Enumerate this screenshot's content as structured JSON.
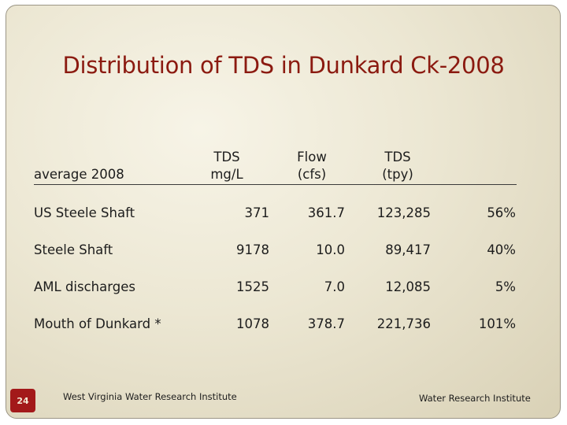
{
  "title": "Distribution of TDS in Dunkard Ck-2008",
  "table": {
    "row_header": "average 2008",
    "columns": [
      {
        "line1": "TDS",
        "line2": "mg/L"
      },
      {
        "line1": "Flow",
        "line2": "(cfs)"
      },
      {
        "line1": "TDS",
        "line2": "(tpy)"
      }
    ],
    "rows": [
      {
        "label": "US Steele Shaft",
        "tds_mgl": "371",
        "flow_cfs": "361.7",
        "tds_tpy": "123,285",
        "percent": "56%"
      },
      {
        "label": "Steele Shaft",
        "tds_mgl": "9178",
        "flow_cfs": "10.0",
        "tds_tpy": "89,417",
        "percent": "40%"
      },
      {
        "label": "AML discharges",
        "tds_mgl": "1525",
        "flow_cfs": "7.0",
        "tds_tpy": "12,085",
        "percent": "5%"
      },
      {
        "label": "Mouth of Dunkard *",
        "tds_mgl": "1078",
        "flow_cfs": "378.7",
        "tds_tpy": "221,736",
        "percent": "101%"
      }
    ]
  },
  "footer": {
    "page_number": "24",
    "left_text": "West Virginia Water Research Institute",
    "right_text": "Water Research Institute"
  },
  "colors": {
    "title": "#8b1a10",
    "page_badge": "#a3191a",
    "background": "#ece7d3"
  }
}
